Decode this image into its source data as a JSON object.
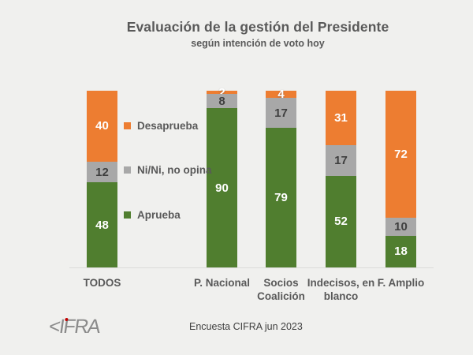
{
  "title": "Evaluación de la gestión del Presidente",
  "subtitle": "según intención de voto hoy",
  "footer": "Encuesta CIFRA jun 2023",
  "logo": {
    "text": "CIFRA"
  },
  "colors": {
    "aprueba": "#507e2f",
    "nini": "#a8a8a8",
    "desaprueba": "#ed7d31",
    "text_gray": "#595959",
    "background": "#f0f0ee"
  },
  "chart_data": {
    "type": "bar",
    "stacked": true,
    "unit": "percent",
    "title": "Evaluación de la gestión del Presidente",
    "subtitle": "según intención de voto hoy",
    "categories": [
      "TODOS",
      "P. Nacional",
      "Socios Coalición",
      "Indecisos, en blanco",
      "F. Amplio"
    ],
    "series": [
      {
        "name": "Aprueba",
        "color": "#507e2f",
        "values": [
          48,
          90,
          79,
          52,
          18
        ]
      },
      {
        "name": "Ni/Ni, no opina",
        "color": "#a8a8a8",
        "values": [
          12,
          8,
          17,
          17,
          10
        ]
      },
      {
        "name": "Desaprueba",
        "color": "#ed7d31",
        "values": [
          40,
          2,
          4,
          31,
          72
        ]
      }
    ],
    "legend": [
      "Desaprueba",
      "Ni/Ni, no opina",
      "Aprueba"
    ],
    "legend_position": "between-first-and-second-bar",
    "ylim": [
      0,
      100
    ],
    "grid": false
  }
}
